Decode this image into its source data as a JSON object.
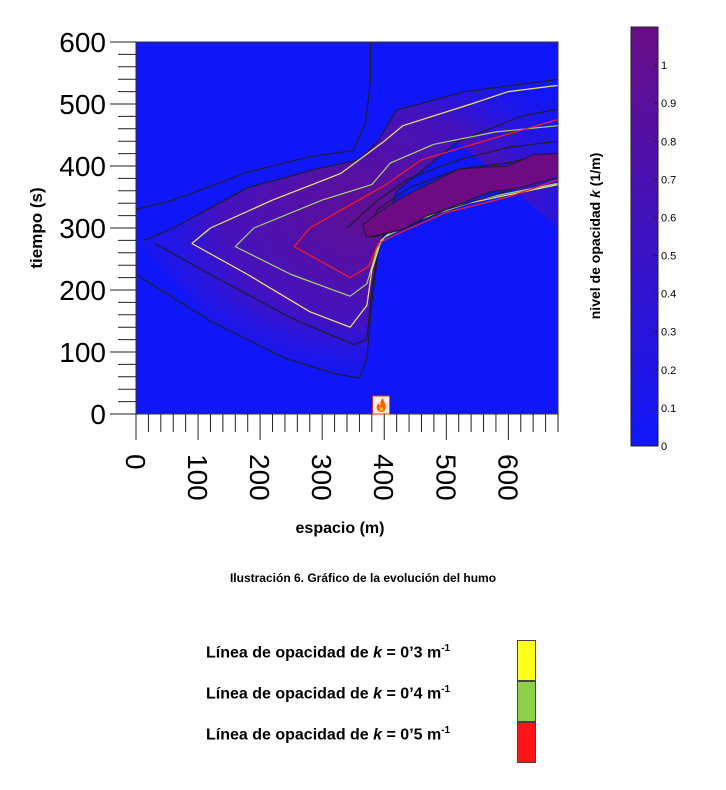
{
  "chart_data": {
    "type": "heatmap",
    "xlabel": "espacio (m)",
    "ylabel": "tiempo (s)",
    "xlim": [
      0,
      680
    ],
    "ylim": [
      0,
      600
    ],
    "xticks": [
      "0",
      "100",
      "200",
      "300",
      "400",
      "500",
      "600"
    ],
    "yticks": [
      "0",
      "100",
      "200",
      "300",
      "400",
      "500",
      "600"
    ],
    "colorbar": {
      "label_prefix": "nivel de opacidad ",
      "label_var": "k",
      "label_suffix": " (1/m)",
      "ticks": [
        "0",
        "0.1",
        "0.2",
        "0.3",
        "0.4",
        "0.5",
        "0.6",
        "0.7",
        "0.8",
        "0.9",
        "1"
      ],
      "min": 0,
      "max": 1.1,
      "colors": [
        "#0f17fa",
        "#6a0e86"
      ]
    },
    "fire_marker_x": 395,
    "contours": [
      {
        "level": 0.02,
        "color": "#1d1d2e",
        "points": [
          [
            0,
            330
          ],
          [
            60,
            345
          ],
          [
            180,
            390
          ],
          [
            280,
            415
          ],
          [
            350,
            425
          ],
          [
            370,
            470
          ],
          [
            378,
            540
          ],
          [
            378,
            600
          ]
        ]
      },
      {
        "level": 0.05,
        "color": "#1d1d2e",
        "points": [
          [
            0,
            225
          ],
          [
            120,
            150
          ],
          [
            240,
            90
          ],
          [
            320,
            65
          ],
          [
            360,
            58
          ],
          [
            372,
            90
          ],
          [
            380,
            180
          ],
          [
            390,
            260
          ],
          [
            420,
            360
          ],
          [
            520,
            440
          ],
          [
            620,
            480
          ],
          [
            680,
            492
          ]
        ]
      },
      {
        "level": 0.1,
        "color": "#1d1d2e",
        "points": [
          [
            12,
            280
          ],
          [
            60,
            300
          ],
          [
            180,
            365
          ],
          [
            290,
            395
          ],
          [
            360,
            410
          ],
          [
            390,
            440
          ],
          [
            420,
            490
          ],
          [
            530,
            520
          ],
          [
            680,
            540
          ]
        ]
      },
      {
        "level": 0.2,
        "color": "#1d1d2e",
        "points": [
          [
            30,
            275
          ],
          [
            120,
            225
          ],
          [
            250,
            155
          ],
          [
            350,
            112
          ],
          [
            372,
            120
          ],
          [
            380,
            200
          ],
          [
            390,
            265
          ],
          [
            420,
            340
          ]
        ]
      },
      {
        "level": 0.3,
        "color": "#f2e66a",
        "points": [
          [
            90,
            275
          ],
          [
            180,
            225
          ],
          [
            280,
            165
          ],
          [
            345,
            140
          ],
          [
            372,
            175
          ],
          [
            380,
            232
          ],
          [
            395,
            280
          ],
          [
            440,
            320
          ],
          [
            560,
            345
          ],
          [
            680,
            370
          ]
        ]
      },
      {
        "level": 0.3,
        "color": "#f2e66a",
        "points": [
          [
            90,
            275
          ],
          [
            120,
            300
          ],
          [
            220,
            345
          ],
          [
            330,
            388
          ],
          [
            400,
            440
          ],
          [
            430,
            465
          ],
          [
            540,
            500
          ],
          [
            600,
            520
          ],
          [
            680,
            530
          ]
        ]
      },
      {
        "level": 0.4,
        "color": "#a7d26a",
        "points": [
          [
            160,
            270
          ],
          [
            250,
            225
          ],
          [
            345,
            190
          ],
          [
            372,
            210
          ],
          [
            388,
            265
          ],
          [
            400,
            285
          ],
          [
            460,
            315
          ],
          [
            560,
            348
          ],
          [
            680,
            372
          ]
        ]
      },
      {
        "level": 0.4,
        "color": "#a7d26a",
        "points": [
          [
            160,
            270
          ],
          [
            190,
            300
          ],
          [
            300,
            345
          ],
          [
            380,
            370
          ],
          [
            410,
            405
          ],
          [
            480,
            435
          ],
          [
            580,
            455
          ],
          [
            680,
            465
          ]
        ]
      },
      {
        "level": 0.5,
        "color": "#ff1a1a",
        "points": [
          [
            255,
            270
          ],
          [
            300,
            245
          ],
          [
            345,
            220
          ],
          [
            375,
            238
          ],
          [
            390,
            275
          ],
          [
            420,
            290
          ],
          [
            500,
            325
          ],
          [
            600,
            350
          ],
          [
            680,
            378
          ]
        ]
      },
      {
        "level": 0.5,
        "color": "#ff1a1a",
        "points": [
          [
            255,
            270
          ],
          [
            280,
            300
          ],
          [
            350,
            340
          ],
          [
            400,
            368
          ],
          [
            460,
            410
          ],
          [
            560,
            440
          ],
          [
            680,
            475
          ]
        ]
      },
      {
        "level": 0.6,
        "color": "#1d1d2e",
        "points": [
          [
            380,
            285
          ],
          [
            430,
            298
          ],
          [
            500,
            330
          ],
          [
            600,
            360
          ],
          [
            680,
            390
          ]
        ]
      },
      {
        "level": 0.6,
        "color": "#1d1d2e",
        "points": [
          [
            340,
            300
          ],
          [
            390,
            345
          ],
          [
            440,
            380
          ],
          [
            520,
            410
          ],
          [
            600,
            430
          ],
          [
            680,
            440
          ]
        ]
      },
      {
        "level": 0.8,
        "color": "#1d1d2e",
        "points": [
          [
            372,
            295
          ],
          [
            420,
            300
          ],
          [
            480,
            330
          ],
          [
            560,
            355
          ],
          [
            640,
            375
          ]
        ]
      },
      {
        "level": 0.8,
        "color": "#1d1d2e",
        "points": [
          [
            372,
            295
          ],
          [
            390,
            330
          ],
          [
            440,
            365
          ],
          [
            520,
            395
          ],
          [
            600,
            405
          ],
          [
            660,
            420
          ]
        ]
      }
    ],
    "hot_region_points": [
      [
        365,
        305
      ],
      [
        372,
        285
      ],
      [
        395,
        290
      ],
      [
        430,
        298
      ],
      [
        470,
        320
      ],
      [
        520,
        338
      ],
      [
        570,
        358
      ],
      [
        620,
        365
      ],
      [
        680,
        382
      ],
      [
        680,
        420
      ],
      [
        640,
        418
      ],
      [
        600,
        400
      ],
      [
        560,
        398
      ],
      [
        520,
        395
      ],
      [
        480,
        375
      ],
      [
        440,
        355
      ],
      [
        410,
        338
      ],
      [
        385,
        320
      ]
    ]
  },
  "caption": "Ilustración 6. Gráfico de la evolución del humo",
  "legend": [
    {
      "prefix": "Línea de opacidad de ",
      "var": "k",
      "value": " = 0’3 m",
      "exp": "-1",
      "color": "#ffff1a"
    },
    {
      "prefix": "Línea de opacidad de ",
      "var": "k",
      "value": " = 0’4 m",
      "exp": "-1",
      "color": "#8fcf4a"
    },
    {
      "prefix": "Línea de opacidad de ",
      "var": "k",
      "value": " = 0’5 m",
      "exp": "-1",
      "color": "#ff1515"
    }
  ]
}
